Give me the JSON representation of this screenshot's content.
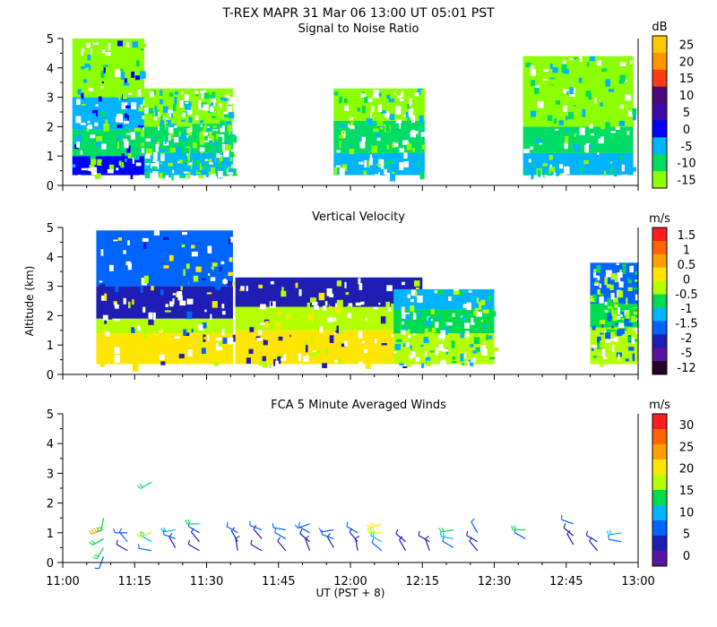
{
  "figure": {
    "title": "T-REX   MAPR 31 Mar 06   13:00 UT   05:01   PST",
    "xlabel": "UT  (PST + 8)",
    "ylabel": "Altitude (km)",
    "x_ticks": [
      "11:00",
      "11:15",
      "11:30",
      "11:45",
      "12:00",
      "12:15",
      "12:30",
      "12:45",
      "13:00"
    ],
    "y_ticks": [
      "0",
      "1",
      "2",
      "3",
      "4",
      "5"
    ]
  },
  "chart_data": [
    {
      "id": "snr",
      "type": "heatmap",
      "title": "Signal to Noise Ratio",
      "xlabel": "UT  (PST + 8)",
      "ylabel": "Altitude (km)",
      "xlim": [
        0,
        120
      ],
      "ylim": [
        0,
        5
      ],
      "colorbar_unit": "dB",
      "colorbar_ticks": [
        "25",
        "20",
        "15",
        "10",
        "5",
        "0",
        "-5",
        "-10",
        "-15"
      ],
      "colorbar_colors": [
        "#ffc800",
        "#ff9600",
        "#ff3c14",
        "#4b0a78",
        "#3c0aaa",
        "#0000ff",
        "#00b4ff",
        "#00dc64",
        "#8cff00"
      ],
      "data_segments_min": [
        [
          2,
          18
        ],
        [
          11.5,
          9
        ],
        [
          7,
          2,
          18
        ],
        [
          57,
          78
        ],
        [
          90,
          105
        ]
      ],
      "segments": [
        {
          "t0": 2,
          "t1": 17,
          "base": 0.35,
          "top": 5.0,
          "layers": [
            {
              "lo": 0.35,
              "hi": 1.0,
              "c": "#0000ff"
            },
            {
              "lo": 1.0,
              "hi": 1.9,
              "c": "#00dc64"
            },
            {
              "lo": 1.9,
              "hi": 3.0,
              "c": "#00b4ff"
            },
            {
              "lo": 3.0,
              "hi": 5.0,
              "c": "#8cff00"
            }
          ]
        },
        {
          "t0": 17,
          "t1": 27,
          "base": 0.35,
          "top": 3.3,
          "layers": [
            {
              "lo": 0.35,
              "hi": 1.1,
              "c": "#00b4ff"
            },
            {
              "lo": 1.1,
              "hi": 2.0,
              "c": "#00dc64"
            },
            {
              "lo": 2.0,
              "hi": 3.3,
              "c": "#8cff00"
            }
          ]
        },
        {
          "t0": 27,
          "t1": 35.5,
          "base": 0.35,
          "top": 3.3,
          "layers": [
            {
              "lo": 0.35,
              "hi": 1.1,
              "c": "#00b4ff"
            },
            {
              "lo": 1.1,
              "hi": 2.1,
              "c": "#00dc64"
            },
            {
              "lo": 2.1,
              "hi": 3.3,
              "c": "#8cff00"
            }
          ]
        },
        {
          "t0": 56.5,
          "t1": 75.5,
          "base": 0.35,
          "top": 3.3,
          "layers": [
            {
              "lo": 0.35,
              "hi": 1.1,
              "c": "#00b4ff"
            },
            {
              "lo": 1.1,
              "hi": 2.2,
              "c": "#00dc64"
            },
            {
              "lo": 2.2,
              "hi": 3.3,
              "c": "#8cff00"
            }
          ]
        },
        {
          "t0": 96,
          "t1": 119,
          "base": 0.35,
          "top": 4.4,
          "layers": [
            {
              "lo": 0.35,
              "hi": 1.1,
              "c": "#00b4ff"
            },
            {
              "lo": 1.1,
              "hi": 2.0,
              "c": "#00dc64"
            },
            {
              "lo": 2.0,
              "hi": 4.4,
              "c": "#8cff00"
            }
          ]
        }
      ]
    },
    {
      "id": "velocity",
      "type": "heatmap",
      "title": "Vertical Velocity",
      "xlabel": "UT  (PST + 8)",
      "ylabel": "Altitude (km)",
      "xlim": [
        0,
        120
      ],
      "ylim": [
        0,
        5
      ],
      "colorbar_unit": "m/s",
      "colorbar_ticks": [
        "1.5",
        "1",
        "0.5",
        "0",
        "-0.5",
        "-1",
        "-1.5",
        "-2",
        "-5",
        "-12"
      ],
      "colorbar_colors": [
        "#ff1e1e",
        "#ff6400",
        "#ffa000",
        "#ffe600",
        "#b4ff00",
        "#00dc50",
        "#00b4ff",
        "#0064ff",
        "#1e1eb4",
        "#5a14a0",
        "#280028"
      ],
      "segments": [
        {
          "t0": 7,
          "t1": 35.5,
          "base": 0.35,
          "top": 4.9,
          "layers": [
            {
              "lo": 0.35,
              "hi": 1.4,
              "c": "#ffe600"
            },
            {
              "lo": 1.4,
              "hi": 1.9,
              "c": "#b4ff00"
            },
            {
              "lo": 1.9,
              "hi": 3.0,
              "c": "#1e1eb4"
            },
            {
              "lo": 3.0,
              "hi": 4.9,
              "c": "#0064ff"
            }
          ]
        },
        {
          "t0": 36,
          "t1": 75,
          "base": 0.35,
          "top": 3.3,
          "layers": [
            {
              "lo": 0.35,
              "hi": 1.5,
              "c": "#ffe600"
            },
            {
              "lo": 1.5,
              "hi": 2.3,
              "c": "#b4ff00"
            },
            {
              "lo": 2.3,
              "hi": 3.3,
              "c": "#1e1eb4"
            }
          ]
        },
        {
          "t0": 69,
          "t1": 90,
          "base": 0.35,
          "top": 2.9,
          "layers": [
            {
              "lo": 0.35,
              "hi": 1.4,
              "c": "#b4ff00"
            },
            {
              "lo": 1.4,
              "hi": 2.2,
              "c": "#00dc50"
            },
            {
              "lo": 2.2,
              "hi": 2.9,
              "c": "#00b4ff"
            }
          ]
        },
        {
          "t0": 110,
          "t1": 125,
          "base": 0.35,
          "top": 3.8,
          "layers": [
            {
              "lo": 0.35,
              "hi": 1.6,
              "c": "#b4ff00"
            },
            {
              "lo": 1.6,
              "hi": 2.4,
              "c": "#00dc50"
            },
            {
              "lo": 2.4,
              "hi": 3.8,
              "c": "#0064ff"
            }
          ]
        }
      ]
    },
    {
      "id": "winds",
      "type": "scatter",
      "title": "FCA 5 Minute Averaged Winds",
      "xlabel": "UT  (PST + 8)",
      "ylabel": "Altitude (km)",
      "xlim": [
        0,
        120
      ],
      "ylim": [
        0,
        5
      ],
      "colorbar_unit": "m/s",
      "colorbar_ticks": [
        "30",
        "25",
        "20",
        "15",
        "10",
        "5",
        "0"
      ],
      "colorbar_colors": [
        "#ff1e1e",
        "#ff6400",
        "#ffa000",
        "#ffe600",
        "#b4ff00",
        "#00dc50",
        "#00b4ff",
        "#0064ff",
        "#1e1eb4",
        "#5a14a0"
      ],
      "times_min": [
        8.5,
        13.5,
        18.5,
        23.5,
        28.5,
        36.5,
        41.5,
        46.5,
        51.5,
        56.5,
        61.5,
        66.5,
        71.5,
        76.5,
        81.5,
        86.5,
        91.5,
        96.5,
        101.5,
        106.5,
        111.5,
        116.5
      ],
      "barbs": [
        {
          "t": 8.5,
          "alt": 0.2,
          "spd": 6,
          "dir": 200
        },
        {
          "t": 8.5,
          "alt": 0.5,
          "spd": 12,
          "dir": 210
        },
        {
          "t": 8.5,
          "alt": 0.8,
          "spd": 14,
          "dir": 240
        },
        {
          "t": 8.5,
          "alt": 1.1,
          "spd": 22,
          "dir": 250
        },
        {
          "t": 8.5,
          "alt": 1.5,
          "spd": 12,
          "dir": 190
        },
        {
          "t": 13.5,
          "alt": 0.4,
          "spd": 4,
          "dir": 300
        },
        {
          "t": 13.5,
          "alt": 0.7,
          "spd": 8,
          "dir": 320
        },
        {
          "t": 13.5,
          "alt": 1.0,
          "spd": 6,
          "dir": 270
        },
        {
          "t": 18.5,
          "alt": 0.4,
          "spd": 6,
          "dir": 280
        },
        {
          "t": 18.5,
          "alt": 0.7,
          "spd": 10,
          "dir": 300
        },
        {
          "t": 18.5,
          "alt": 1.0,
          "spd": 18,
          "dir": 250
        },
        {
          "t": 18.5,
          "alt": 2.7,
          "spd": 12,
          "dir": 240
        },
        {
          "t": 23.5,
          "alt": 0.5,
          "spd": 4,
          "dir": 330
        },
        {
          "t": 23.5,
          "alt": 0.8,
          "spd": 8,
          "dir": 290
        },
        {
          "t": 23.5,
          "alt": 1.1,
          "spd": 10,
          "dir": 260
        },
        {
          "t": 28.5,
          "alt": 0.4,
          "spd": 4,
          "dir": 300
        },
        {
          "t": 28.5,
          "alt": 0.7,
          "spd": 5,
          "dir": 320
        },
        {
          "t": 28.5,
          "alt": 1.0,
          "spd": 6,
          "dir": 300
        },
        {
          "t": 28.5,
          "alt": 1.3,
          "spd": 12,
          "dir": 270
        },
        {
          "t": 36.5,
          "alt": 0.4,
          "spd": 4,
          "dir": 350
        },
        {
          "t": 36.5,
          "alt": 0.7,
          "spd": 5,
          "dir": 330
        },
        {
          "t": 36.5,
          "alt": 1.0,
          "spd": 6,
          "dir": 300
        },
        {
          "t": 41.5,
          "alt": 0.4,
          "spd": 4,
          "dir": 300
        },
        {
          "t": 41.5,
          "alt": 0.8,
          "spd": 5,
          "dir": 320
        },
        {
          "t": 41.5,
          "alt": 1.1,
          "spd": 6,
          "dir": 290
        },
        {
          "t": 46.5,
          "alt": 0.4,
          "spd": 4,
          "dir": 320
        },
        {
          "t": 46.5,
          "alt": 0.8,
          "spd": 6,
          "dir": 300
        },
        {
          "t": 46.5,
          "alt": 1.1,
          "spd": 8,
          "dir": 280
        },
        {
          "t": 51.5,
          "alt": 0.4,
          "spd": 4,
          "dir": 340
        },
        {
          "t": 51.5,
          "alt": 0.7,
          "spd": 5,
          "dir": 310
        },
        {
          "t": 51.5,
          "alt": 1.0,
          "spd": 6,
          "dir": 300
        },
        {
          "t": 51.5,
          "alt": 1.3,
          "spd": 6,
          "dir": 250
        },
        {
          "t": 56.5,
          "alt": 0.5,
          "spd": 4,
          "dir": 330
        },
        {
          "t": 56.5,
          "alt": 0.8,
          "spd": 6,
          "dir": 290
        },
        {
          "t": 56.5,
          "alt": 1.1,
          "spd": 7,
          "dir": 260
        },
        {
          "t": 61.5,
          "alt": 0.4,
          "spd": 4,
          "dir": 350
        },
        {
          "t": 61.5,
          "alt": 0.7,
          "spd": 5,
          "dir": 320
        },
        {
          "t": 61.5,
          "alt": 1.0,
          "spd": 6,
          "dir": 300
        },
        {
          "t": 66.5,
          "alt": 0.4,
          "spd": 6,
          "dir": 310
        },
        {
          "t": 66.5,
          "alt": 0.7,
          "spd": 10,
          "dir": 300
        },
        {
          "t": 66.5,
          "alt": 1.0,
          "spd": 18,
          "dir": 270
        },
        {
          "t": 66.5,
          "alt": 1.3,
          "spd": 20,
          "dir": 250
        },
        {
          "t": 71.5,
          "alt": 0.4,
          "spd": 4,
          "dir": 330
        },
        {
          "t": 71.5,
          "alt": 0.7,
          "spd": 5,
          "dir": 310
        },
        {
          "t": 76.5,
          "alt": 0.4,
          "spd": 4,
          "dir": 340
        },
        {
          "t": 76.5,
          "alt": 0.7,
          "spd": 5,
          "dir": 300
        },
        {
          "t": 81.5,
          "alt": 0.5,
          "spd": 6,
          "dir": 300
        },
        {
          "t": 81.5,
          "alt": 0.8,
          "spd": 10,
          "dir": 280
        },
        {
          "t": 81.5,
          "alt": 1.1,
          "spd": 14,
          "dir": 260
        },
        {
          "t": 86.5,
          "alt": 0.4,
          "spd": 4,
          "dir": 320
        },
        {
          "t": 86.5,
          "alt": 0.7,
          "spd": 5,
          "dir": 300
        },
        {
          "t": 86.5,
          "alt": 1.0,
          "spd": 6,
          "dir": 330
        },
        {
          "t": 96.5,
          "alt": 0.8,
          "spd": 8,
          "dir": 300
        },
        {
          "t": 96.5,
          "alt": 1.1,
          "spd": 12,
          "dir": 270
        },
        {
          "t": 106.5,
          "alt": 0.6,
          "spd": 4,
          "dir": 330
        },
        {
          "t": 106.5,
          "alt": 0.9,
          "spd": 5,
          "dir": 310
        },
        {
          "t": 106.5,
          "alt": 1.3,
          "spd": 6,
          "dir": 290
        },
        {
          "t": 111.5,
          "alt": 0.4,
          "spd": 4,
          "dir": 320
        },
        {
          "t": 111.5,
          "alt": 0.7,
          "spd": 5,
          "dir": 300
        },
        {
          "t": 116.5,
          "alt": 0.7,
          "spd": 8,
          "dir": 280
        },
        {
          "t": 116.5,
          "alt": 1.0,
          "spd": 10,
          "dir": 260
        }
      ]
    }
  ]
}
